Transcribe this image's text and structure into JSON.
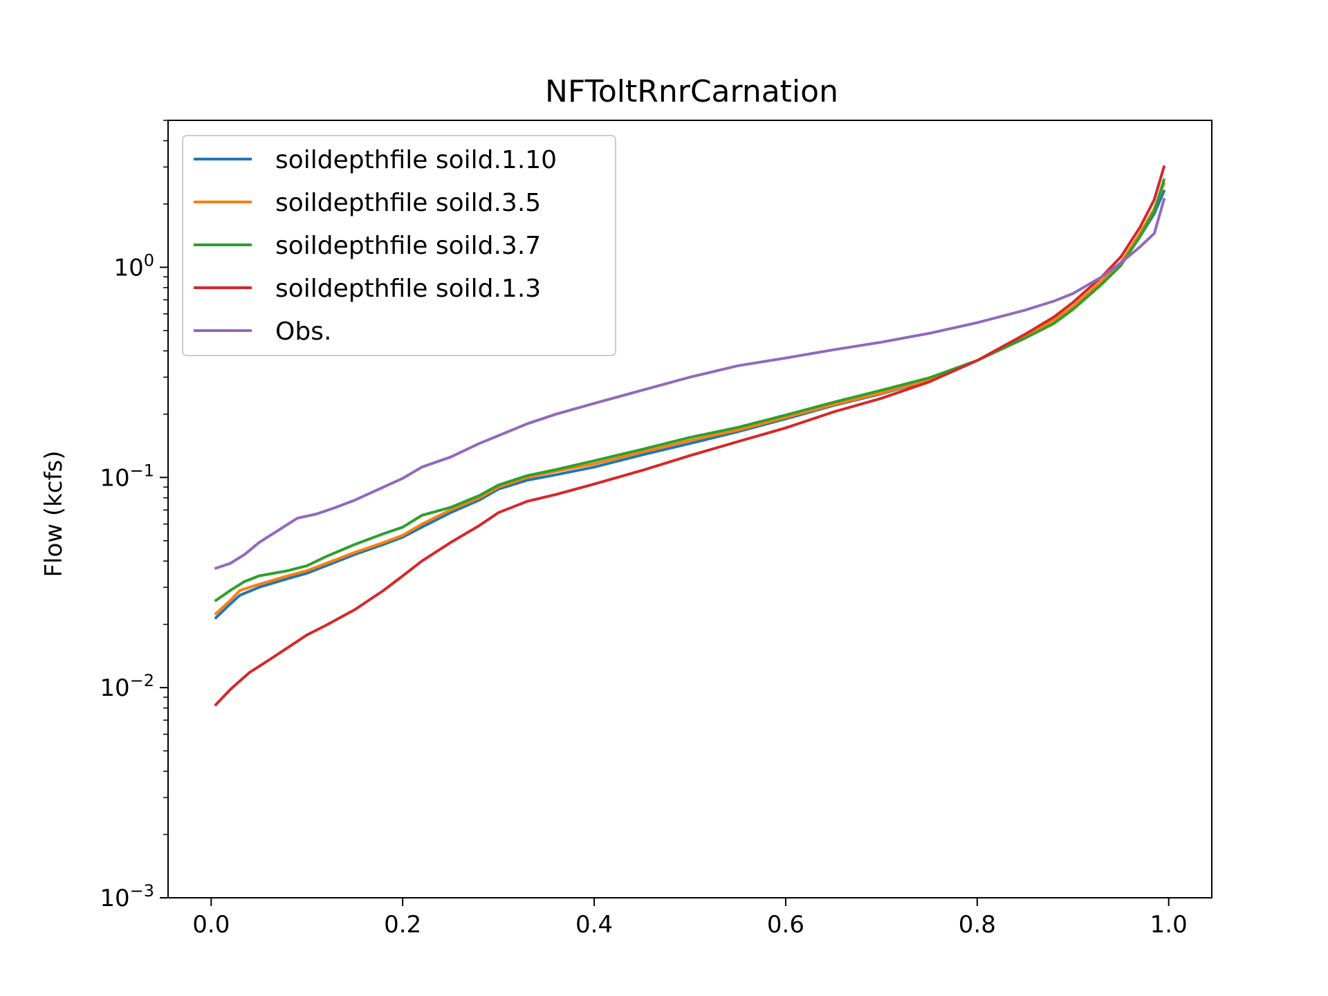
{
  "chart_data": {
    "type": "line",
    "title": "NFToltRnrCarnation",
    "xlabel": "",
    "ylabel": "Flow (kcfs)",
    "xlim": [
      -0.045,
      1.045
    ],
    "ylim": [
      0.001,
      5
    ],
    "yscale": "log",
    "grid": false,
    "legend_position": "upper-left",
    "x_ticks": [
      {
        "value": 0.0,
        "label": "0.0"
      },
      {
        "value": 0.2,
        "label": "0.2"
      },
      {
        "value": 0.4,
        "label": "0.4"
      },
      {
        "value": 0.6,
        "label": "0.6"
      },
      {
        "value": 0.8,
        "label": "0.8"
      },
      {
        "value": 1.0,
        "label": "1.0"
      }
    ],
    "y_ticks": [
      {
        "value": 0.001,
        "base": "10",
        "exp": "−3"
      },
      {
        "value": 0.01,
        "base": "10",
        "exp": "−2"
      },
      {
        "value": 0.1,
        "base": "10",
        "exp": "−1"
      },
      {
        "value": 1,
        "base": "10",
        "exp": "0"
      }
    ],
    "series": [
      {
        "name": "soildepthfile soild.1.10",
        "color": "#1f77b4",
        "points": [
          [
            0.005,
            0.0215
          ],
          [
            0.02,
            0.025
          ],
          [
            0.03,
            0.0275
          ],
          [
            0.05,
            0.03
          ],
          [
            0.08,
            0.033
          ],
          [
            0.1,
            0.035
          ],
          [
            0.12,
            0.038
          ],
          [
            0.15,
            0.043
          ],
          [
            0.18,
            0.048
          ],
          [
            0.2,
            0.052
          ],
          [
            0.22,
            0.058
          ],
          [
            0.25,
            0.068
          ],
          [
            0.28,
            0.078
          ],
          [
            0.3,
            0.088
          ],
          [
            0.33,
            0.097
          ],
          [
            0.36,
            0.103
          ],
          [
            0.4,
            0.112
          ],
          [
            0.45,
            0.128
          ],
          [
            0.5,
            0.145
          ],
          [
            0.55,
            0.165
          ],
          [
            0.6,
            0.19
          ],
          [
            0.65,
            0.22
          ],
          [
            0.7,
            0.25
          ],
          [
            0.75,
            0.29
          ],
          [
            0.8,
            0.36
          ],
          [
            0.85,
            0.47
          ],
          [
            0.88,
            0.56
          ],
          [
            0.9,
            0.65
          ],
          [
            0.93,
            0.85
          ],
          [
            0.95,
            1.05
          ],
          [
            0.97,
            1.4
          ],
          [
            0.985,
            1.8
          ],
          [
            0.995,
            2.3
          ]
        ]
      },
      {
        "name": "soildepthfile soild.3.5",
        "color": "#ff7f0e",
        "points": [
          [
            0.005,
            0.0225
          ],
          [
            0.02,
            0.026
          ],
          [
            0.03,
            0.029
          ],
          [
            0.05,
            0.031
          ],
          [
            0.08,
            0.034
          ],
          [
            0.1,
            0.036
          ],
          [
            0.12,
            0.039
          ],
          [
            0.15,
            0.044
          ],
          [
            0.18,
            0.049
          ],
          [
            0.2,
            0.053
          ],
          [
            0.22,
            0.06
          ],
          [
            0.25,
            0.07
          ],
          [
            0.28,
            0.08
          ],
          [
            0.3,
            0.09
          ],
          [
            0.33,
            0.1
          ],
          [
            0.36,
            0.107
          ],
          [
            0.4,
            0.116
          ],
          [
            0.45,
            0.132
          ],
          [
            0.5,
            0.15
          ],
          [
            0.55,
            0.168
          ],
          [
            0.6,
            0.193
          ],
          [
            0.65,
            0.222
          ],
          [
            0.7,
            0.252
          ],
          [
            0.75,
            0.292
          ],
          [
            0.8,
            0.36
          ],
          [
            0.85,
            0.47
          ],
          [
            0.88,
            0.56
          ],
          [
            0.9,
            0.65
          ],
          [
            0.93,
            0.86
          ],
          [
            0.95,
            1.05
          ],
          [
            0.97,
            1.45
          ],
          [
            0.985,
            1.9
          ],
          [
            0.995,
            2.5
          ]
        ]
      },
      {
        "name": "soildepthfile soild.3.7",
        "color": "#2ca02c",
        "points": [
          [
            0.005,
            0.026
          ],
          [
            0.02,
            0.029
          ],
          [
            0.035,
            0.032
          ],
          [
            0.05,
            0.034
          ],
          [
            0.08,
            0.036
          ],
          [
            0.1,
            0.038
          ],
          [
            0.12,
            0.042
          ],
          [
            0.15,
            0.048
          ],
          [
            0.18,
            0.054
          ],
          [
            0.2,
            0.058
          ],
          [
            0.22,
            0.066
          ],
          [
            0.25,
            0.072
          ],
          [
            0.28,
            0.082
          ],
          [
            0.3,
            0.092
          ],
          [
            0.33,
            0.102
          ],
          [
            0.36,
            0.109
          ],
          [
            0.4,
            0.12
          ],
          [
            0.45,
            0.136
          ],
          [
            0.5,
            0.155
          ],
          [
            0.55,
            0.173
          ],
          [
            0.6,
            0.198
          ],
          [
            0.65,
            0.228
          ],
          [
            0.7,
            0.26
          ],
          [
            0.75,
            0.298
          ],
          [
            0.8,
            0.36
          ],
          [
            0.85,
            0.46
          ],
          [
            0.88,
            0.54
          ],
          [
            0.9,
            0.63
          ],
          [
            0.93,
            0.83
          ],
          [
            0.95,
            1.02
          ],
          [
            0.97,
            1.4
          ],
          [
            0.985,
            1.85
          ],
          [
            0.995,
            2.6
          ]
        ]
      },
      {
        "name": "soildepthfile soild.1.3",
        "color": "#d62728",
        "points": [
          [
            0.005,
            0.0083
          ],
          [
            0.02,
            0.0098
          ],
          [
            0.04,
            0.0118
          ],
          [
            0.06,
            0.0135
          ],
          [
            0.08,
            0.0155
          ],
          [
            0.1,
            0.0178
          ],
          [
            0.12,
            0.0198
          ],
          [
            0.15,
            0.0235
          ],
          [
            0.18,
            0.029
          ],
          [
            0.2,
            0.034
          ],
          [
            0.22,
            0.04
          ],
          [
            0.25,
            0.049
          ],
          [
            0.28,
            0.059
          ],
          [
            0.3,
            0.068
          ],
          [
            0.33,
            0.077
          ],
          [
            0.36,
            0.083
          ],
          [
            0.4,
            0.093
          ],
          [
            0.45,
            0.108
          ],
          [
            0.5,
            0.127
          ],
          [
            0.55,
            0.148
          ],
          [
            0.6,
            0.172
          ],
          [
            0.65,
            0.205
          ],
          [
            0.7,
            0.238
          ],
          [
            0.75,
            0.285
          ],
          [
            0.8,
            0.36
          ],
          [
            0.85,
            0.48
          ],
          [
            0.88,
            0.58
          ],
          [
            0.9,
            0.68
          ],
          [
            0.93,
            0.9
          ],
          [
            0.95,
            1.12
          ],
          [
            0.97,
            1.55
          ],
          [
            0.985,
            2.1
          ],
          [
            0.995,
            3.0
          ]
        ]
      },
      {
        "name": "Obs.",
        "color": "#9467bd",
        "points": [
          [
            0.005,
            0.037
          ],
          [
            0.02,
            0.039
          ],
          [
            0.035,
            0.043
          ],
          [
            0.05,
            0.049
          ],
          [
            0.07,
            0.056
          ],
          [
            0.09,
            0.064
          ],
          [
            0.11,
            0.067
          ],
          [
            0.13,
            0.072
          ],
          [
            0.15,
            0.078
          ],
          [
            0.18,
            0.09
          ],
          [
            0.2,
            0.099
          ],
          [
            0.22,
            0.112
          ],
          [
            0.25,
            0.125
          ],
          [
            0.28,
            0.145
          ],
          [
            0.3,
            0.158
          ],
          [
            0.33,
            0.18
          ],
          [
            0.36,
            0.2
          ],
          [
            0.4,
            0.225
          ],
          [
            0.45,
            0.26
          ],
          [
            0.5,
            0.3
          ],
          [
            0.55,
            0.34
          ],
          [
            0.6,
            0.37
          ],
          [
            0.65,
            0.405
          ],
          [
            0.7,
            0.44
          ],
          [
            0.75,
            0.485
          ],
          [
            0.8,
            0.545
          ],
          [
            0.85,
            0.625
          ],
          [
            0.88,
            0.69
          ],
          [
            0.9,
            0.75
          ],
          [
            0.93,
            0.9
          ],
          [
            0.95,
            1.05
          ],
          [
            0.97,
            1.25
          ],
          [
            0.985,
            1.45
          ],
          [
            0.995,
            2.1
          ]
        ]
      }
    ]
  }
}
